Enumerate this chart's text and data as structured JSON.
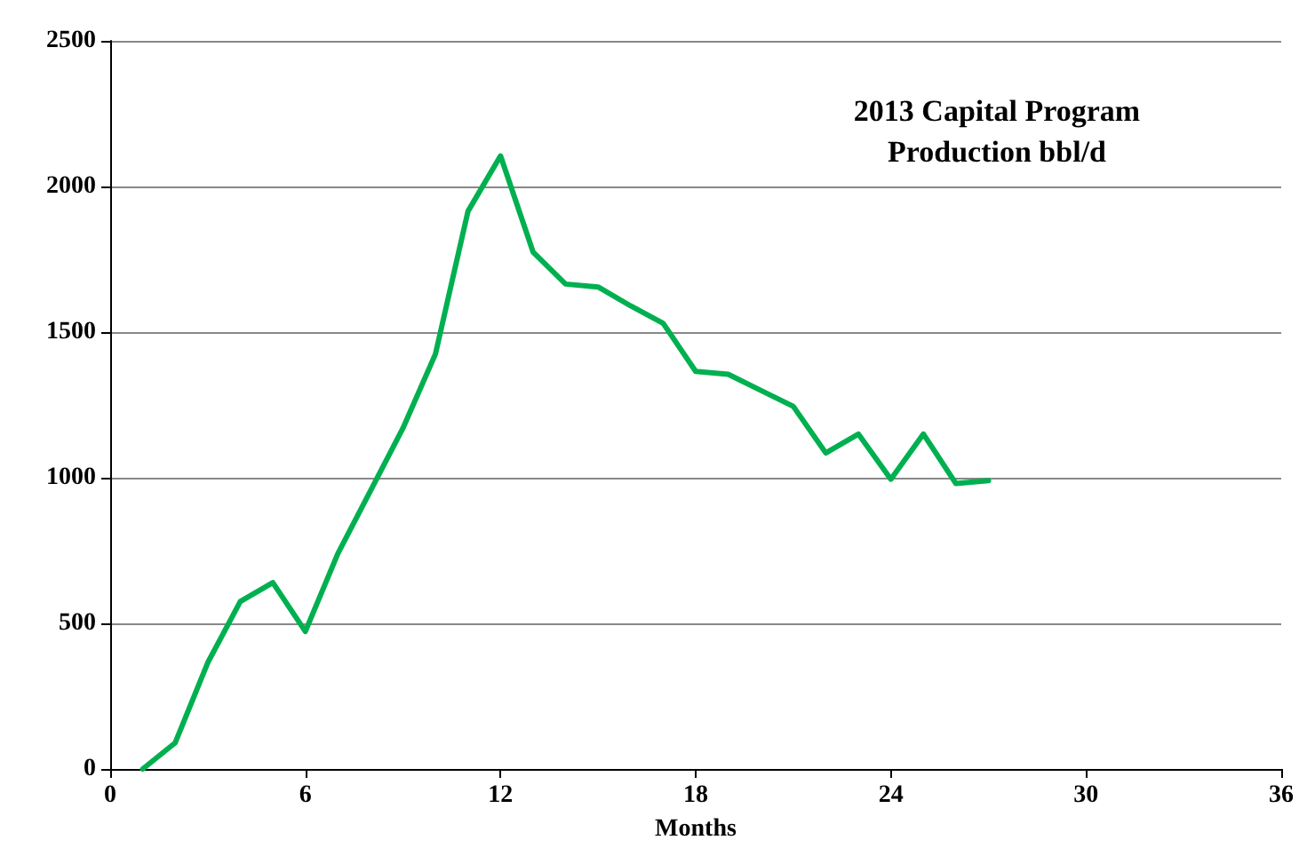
{
  "chart_data": {
    "type": "line",
    "title": "2013 Capital Program\nProduction bbl/d",
    "xlabel": "Months",
    "x": [
      1,
      2,
      3,
      4,
      5,
      6,
      7,
      8,
      9,
      10,
      11,
      12,
      13,
      14,
      15,
      16,
      17,
      18,
      19,
      20,
      21,
      22,
      23,
      24,
      25,
      26,
      27
    ],
    "series": [
      {
        "color": "#00b050",
        "values": [
          0,
          90,
          365,
          575,
          640,
          472,
          740,
          955,
          1170,
          1425,
          1915,
          2105,
          1775,
          1665,
          1655,
          1590,
          1530,
          1365,
          1355,
          1300,
          1245,
          1085,
          1150,
          995,
          1150,
          980,
          990
        ]
      }
    ],
    "xlim": [
      0,
      36
    ],
    "xticks": [
      0,
      6,
      12,
      18,
      24,
      30,
      36
    ],
    "ylim": [
      0,
      2500
    ],
    "yticks": [
      0,
      500,
      1000,
      1500,
      2000,
      2500
    ],
    "grid": "y",
    "marker": "none",
    "line_style": "solid"
  }
}
